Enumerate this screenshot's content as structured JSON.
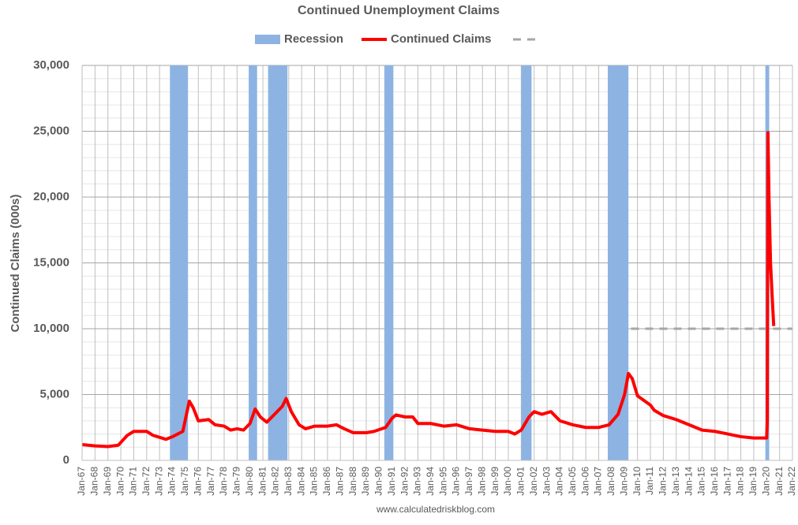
{
  "chart_data": {
    "type": "line",
    "title": "Continued Unemployment Claims",
    "y_label": "Continued Claims (000s)",
    "source": "www.calculatedriskblog.com",
    "xlim": [
      1967,
      2022
    ],
    "xticks": [
      {
        "value": 1967,
        "label": "Jan-67"
      },
      {
        "value": 1968,
        "label": "Jan-68"
      },
      {
        "value": 1969,
        "label": "Jan-69"
      },
      {
        "value": 1970,
        "label": "Jan-70"
      },
      {
        "value": 1971,
        "label": "Jan-71"
      },
      {
        "value": 1972,
        "label": "Jan-72"
      },
      {
        "value": 1973,
        "label": "Jan-73"
      },
      {
        "value": 1974,
        "label": "Jan-74"
      },
      {
        "value": 1975,
        "label": "Jan-75"
      },
      {
        "value": 1976,
        "label": "Jan-76"
      },
      {
        "value": 1977,
        "label": "Jan-77"
      },
      {
        "value": 1978,
        "label": "Jan-78"
      },
      {
        "value": 1979,
        "label": "Jan-79"
      },
      {
        "value": 1980,
        "label": "Jan-80"
      },
      {
        "value": 1981,
        "label": "Jan-81"
      },
      {
        "value": 1982,
        "label": "Jan-82"
      },
      {
        "value": 1983,
        "label": "Jan-83"
      },
      {
        "value": 1984,
        "label": "Jan-84"
      },
      {
        "value": 1985,
        "label": "Jan-85"
      },
      {
        "value": 1986,
        "label": "Jan-86"
      },
      {
        "value": 1987,
        "label": "Jan-87"
      },
      {
        "value": 1988,
        "label": "Jan-88"
      },
      {
        "value": 1989,
        "label": "Jan-89"
      },
      {
        "value": 1990,
        "label": "Jan-90"
      },
      {
        "value": 1991,
        "label": "Jan-91"
      },
      {
        "value": 1992,
        "label": "Jan-92"
      },
      {
        "value": 1993,
        "label": "Jan-93"
      },
      {
        "value": 1994,
        "label": "Jan-94"
      },
      {
        "value": 1995,
        "label": "Jan-95"
      },
      {
        "value": 1996,
        "label": "Jan-96"
      },
      {
        "value": 1997,
        "label": "Jan-97"
      },
      {
        "value": 1998,
        "label": "Jan-98"
      },
      {
        "value": 1999,
        "label": "Jan-99"
      },
      {
        "value": 2000,
        "label": "Jan-00"
      },
      {
        "value": 2001,
        "label": "Jan-01"
      },
      {
        "value": 2002,
        "label": "Jan-02"
      },
      {
        "value": 2003,
        "label": "Jan-03"
      },
      {
        "value": 2004,
        "label": "Jan-04"
      },
      {
        "value": 2005,
        "label": "Jan-05"
      },
      {
        "value": 2006,
        "label": "Jan-06"
      },
      {
        "value": 2007,
        "label": "Jan-07"
      },
      {
        "value": 2008,
        "label": "Jan-08"
      },
      {
        "value": 2009,
        "label": "Jan-09"
      },
      {
        "value": 2010,
        "label": "Jan-10"
      },
      {
        "value": 2011,
        "label": "Jan-11"
      },
      {
        "value": 2012,
        "label": "Jan-12"
      },
      {
        "value": 2013,
        "label": "Jan-13"
      },
      {
        "value": 2014,
        "label": "Jan-14"
      },
      {
        "value": 2015,
        "label": "Jan-15"
      },
      {
        "value": 2016,
        "label": "Jan-16"
      },
      {
        "value": 2017,
        "label": "Jan-17"
      },
      {
        "value": 2018,
        "label": "Jan-18"
      },
      {
        "value": 2019,
        "label": "Jan-19"
      },
      {
        "value": 2020,
        "label": "Jan-20"
      },
      {
        "value": 2021,
        "label": "Jan-21"
      },
      {
        "value": 2022,
        "label": "Jan-22"
      }
    ],
    "ylim": [
      0,
      30000
    ],
    "yticks": [
      0,
      {
        "value": 5000,
        "label": "5,000"
      },
      {
        "value": 10000,
        "label": "10,000"
      },
      {
        "value": 15000,
        "label": "15,000"
      },
      {
        "value": 20000,
        "label": "20,000"
      },
      {
        "value": 25000,
        "label": "25,000"
      },
      {
        "value": 30000,
        "label": "30,000"
      }
    ],
    "minor_ystep": 1000,
    "grid": true,
    "recessions": {
      "name": "Recession",
      "color": "#8db3e2",
      "periods": [
        [
          1973.8,
          1975.2
        ],
        [
          1979.9,
          1980.55
        ],
        [
          1981.4,
          1982.9
        ],
        [
          1990.4,
          1991.1
        ],
        [
          2001.0,
          2001.8
        ],
        [
          2007.7,
          2009.3
        ],
        [
          2019.9,
          2020.2
        ]
      ]
    },
    "reference_line": {
      "value": 10000,
      "xlim": [
        2009.5,
        2022
      ],
      "color": "#a6a6a6"
    },
    "series": [
      {
        "name": "Continued Claims",
        "color": "#ff0000",
        "x": [
          1967,
          1968,
          1969,
          1969.8,
          1970.5,
          1971,
          1972,
          1972.5,
          1973.5,
          1974,
          1974.8,
          1975.3,
          1975.6,
          1976,
          1976.8,
          1977.3,
          1978,
          1978.5,
          1979,
          1979.5,
          1980,
          1980.4,
          1980.8,
          1981.3,
          1981.8,
          1982.5,
          1982.8,
          1983.2,
          1983.8,
          1984.3,
          1985,
          1986,
          1986.7,
          1987.3,
          1988,
          1989,
          1989.6,
          1990.5,
          1991,
          1991.3,
          1992,
          1992.6,
          1993,
          1994,
          1995,
          1996,
          1997,
          1998,
          1999,
          2000,
          2000.5,
          2001,
          2001.6,
          2002,
          2002.6,
          2003.3,
          2004,
          2005,
          2006,
          2007,
          2007.8,
          2008.5,
          2009,
          2009.3,
          2009.6,
          2010,
          2011,
          2011.3,
          2012,
          2013,
          2014,
          2015,
          2016,
          2017,
          2018,
          2019,
          2020,
          2020.05,
          2020.1,
          2020.18,
          2020.3,
          2020.45,
          2020.55
        ],
        "values": [
          1200,
          1100,
          1050,
          1150,
          1900,
          2200,
          2200,
          1900,
          1600,
          1800,
          2200,
          4500,
          4000,
          3000,
          3100,
          2700,
          2600,
          2300,
          2400,
          2300,
          2800,
          3900,
          3300,
          2900,
          3400,
          4100,
          4700,
          3700,
          2700,
          2400,
          2600,
          2600,
          2700,
          2400,
          2100,
          2100,
          2200,
          2500,
          3200,
          3450,
          3300,
          3300,
          2800,
          2800,
          2600,
          2700,
          2400,
          2300,
          2200,
          2200,
          2000,
          2300,
          3300,
          3700,
          3500,
          3700,
          3000,
          2700,
          2500,
          2500,
          2700,
          3500,
          5000,
          6600,
          6200,
          4900,
          4200,
          3800,
          3400,
          3100,
          2700,
          2300,
          2200,
          2000,
          1800,
          1700,
          1700,
          3000,
          24900,
          20000,
          15000,
          12000,
          10200
        ]
      }
    ]
  }
}
